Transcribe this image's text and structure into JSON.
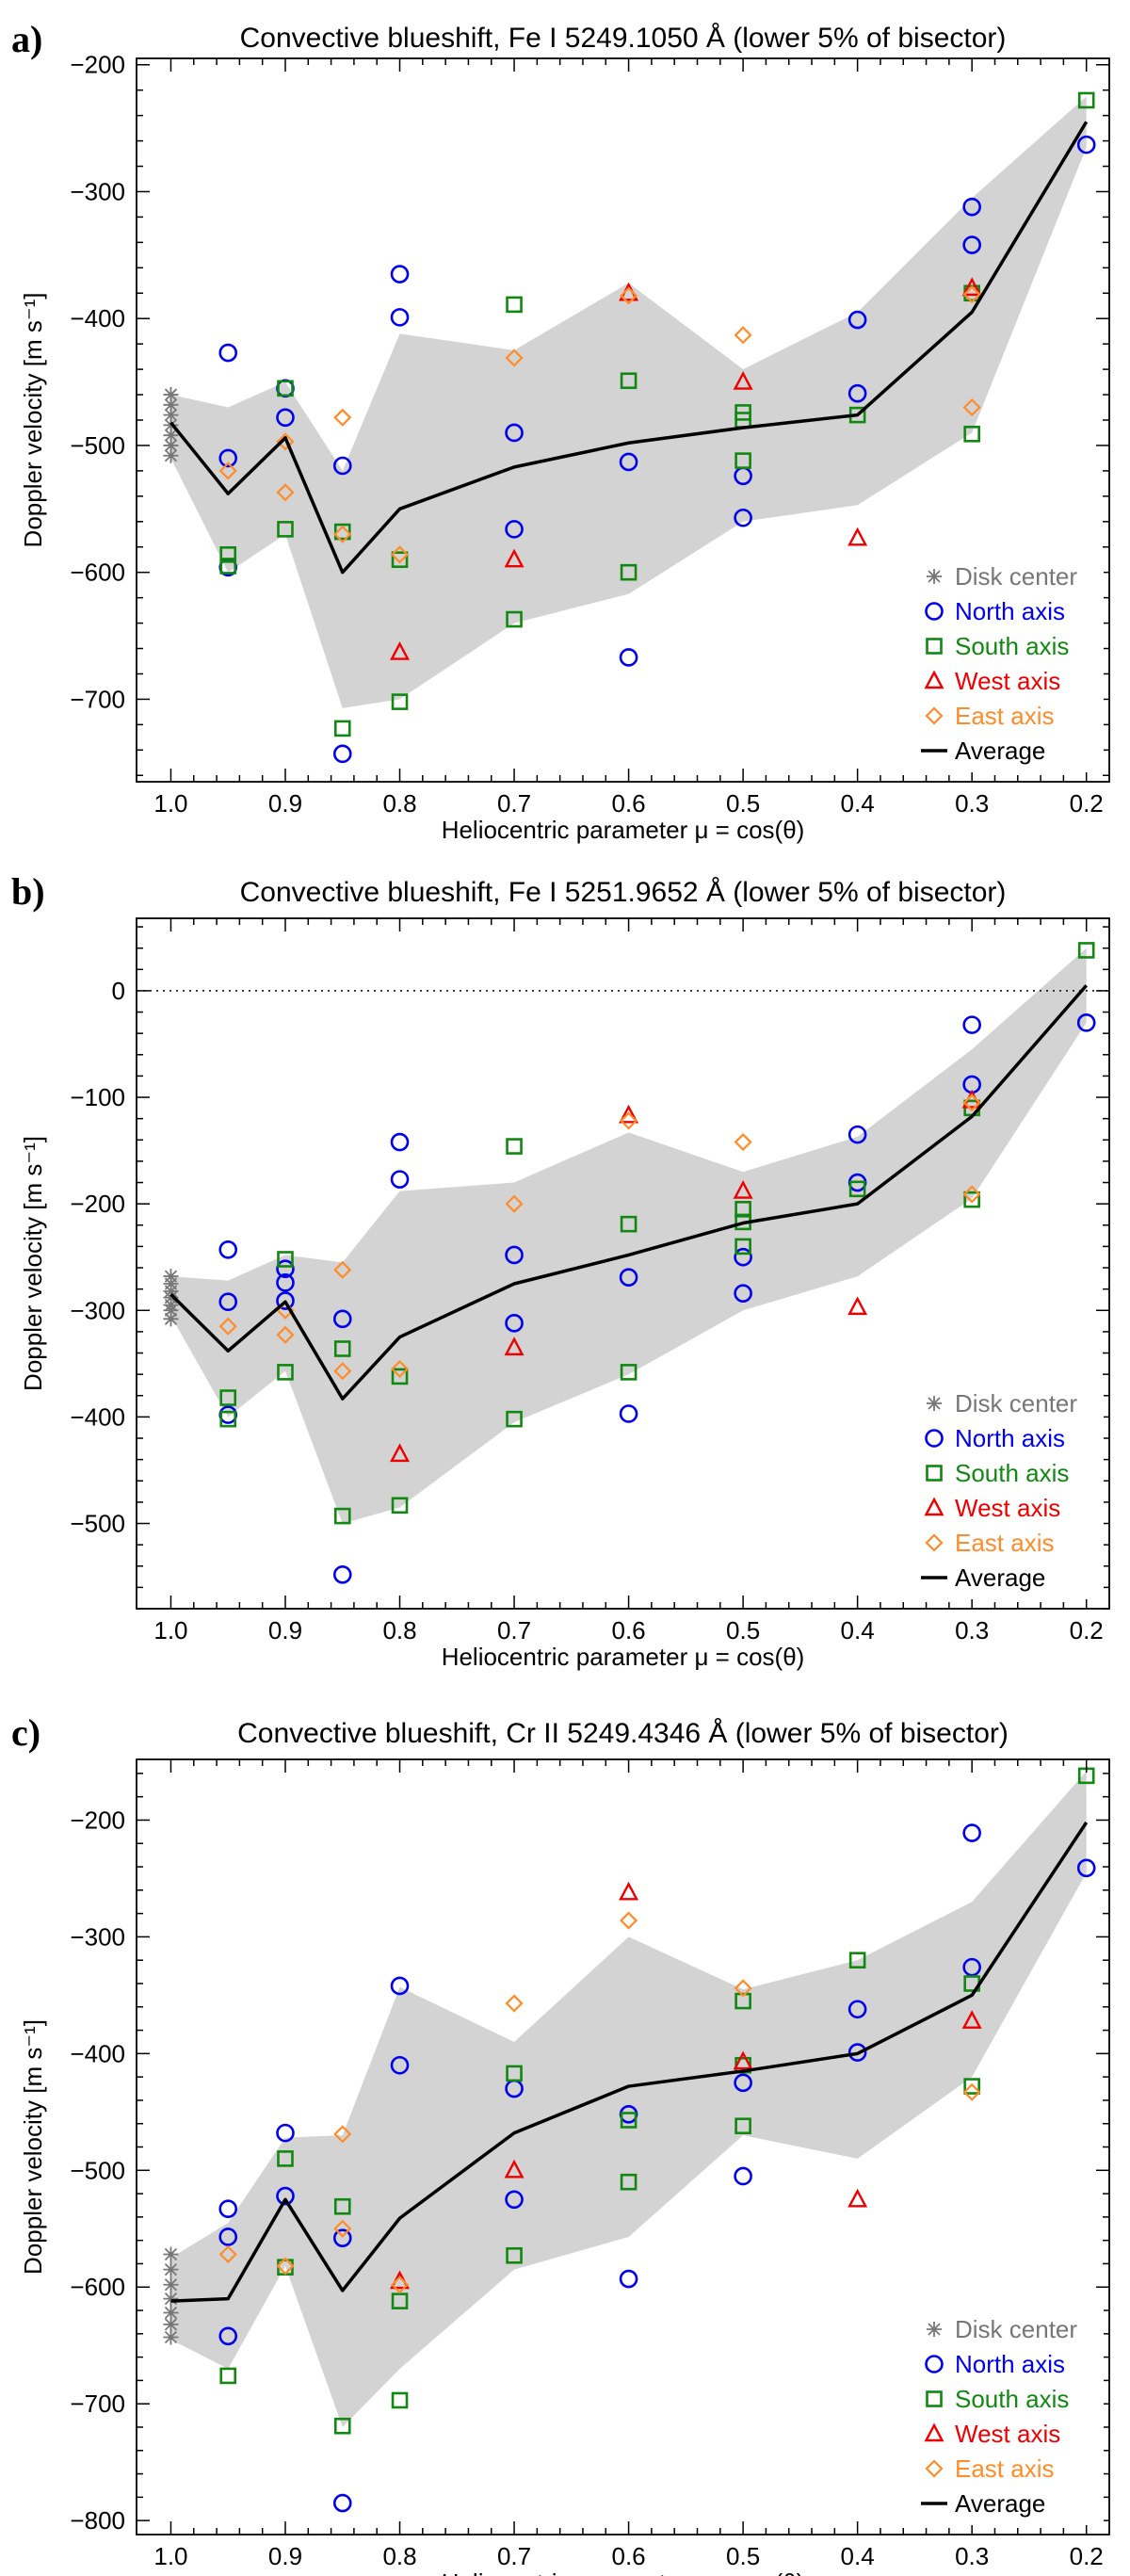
{
  "chart_data": [
    {
      "type": "scatter",
      "panel_label": "a)",
      "title": "Convective blueshift, Fe I 5249.1050 Å (lower 5% of bisector)",
      "xlabel": "Heliocentric parameter μ = cos(θ)",
      "ylabel": "Doppler velocity [m s⁻¹]",
      "xlim": [
        1.03,
        0.18
      ],
      "ylim": [
        -765,
        -195
      ],
      "xticks": [
        "1.0",
        "0.9",
        "0.8",
        "0.7",
        "0.6",
        "0.5",
        "0.4",
        "0.3",
        "0.2"
      ],
      "yticks": [
        "-200",
        "-300",
        "-400",
        "-500",
        "-600",
        "-700"
      ],
      "ytick_values": [
        -200,
        -300,
        -400,
        -500,
        -600,
        -700
      ],
      "zero_line": false,
      "legend_position": "bottom-right",
      "legend": [
        "Disk center",
        "North axis",
        "South axis",
        "West axis",
        "East axis",
        "Average"
      ],
      "band_x": [
        1.0,
        0.95,
        0.9,
        0.85,
        0.8,
        0.7,
        0.6,
        0.5,
        0.4,
        0.3,
        0.2
      ],
      "band_upper": [
        -460,
        -470,
        -450,
        -520,
        -412,
        -425,
        -372,
        -440,
        -395,
        -305,
        -225
      ],
      "band_lower": [
        -510,
        -600,
        -570,
        -707,
        -700,
        -640,
        -617,
        -560,
        -547,
        -490,
        -265
      ],
      "series": [
        {
          "name": "Disk center",
          "marker": "star",
          "color": "#777777",
          "x": [
            1.0,
            1.0,
            1.0,
            1.0,
            1.0,
            1.0,
            1.0
          ],
          "y": [
            -460,
            -468,
            -476,
            -484,
            -492,
            -500,
            -508
          ]
        },
        {
          "name": "North axis",
          "marker": "circle",
          "color": "#0000ee",
          "x": [
            0.95,
            0.95,
            0.95,
            0.9,
            0.9,
            0.85,
            0.85,
            0.8,
            0.8,
            0.7,
            0.7,
            0.6,
            0.6,
            0.5,
            0.5,
            0.4,
            0.4,
            0.3,
            0.3,
            0.2
          ],
          "y": [
            -427,
            -510,
            -596,
            -455,
            -478,
            -516,
            -743,
            -365,
            -399,
            -490,
            -566,
            -513,
            -667,
            -524,
            -557,
            -401,
            -459,
            -312,
            -342,
            -263
          ]
        },
        {
          "name": "South axis",
          "marker": "square",
          "color": "#118811",
          "x": [
            0.95,
            0.95,
            0.9,
            0.9,
            0.85,
            0.85,
            0.8,
            0.8,
            0.7,
            0.7,
            0.6,
            0.6,
            0.5,
            0.5,
            0.5,
            0.4,
            0.3,
            0.3,
            0.2
          ],
          "y": [
            -586,
            -595,
            -455,
            -566,
            -568,
            -723,
            -590,
            -702,
            -389,
            -637,
            -449,
            -600,
            -474,
            -480,
            -512,
            -476,
            -380,
            -491,
            -228
          ]
        },
        {
          "name": "West axis",
          "marker": "triangle",
          "color": "#ee0000",
          "x": [
            0.8,
            0.7,
            0.6,
            0.5,
            0.4,
            0.3
          ],
          "y": [
            -663,
            -590,
            -380,
            -450,
            -573,
            -376
          ]
        },
        {
          "name": "East axis",
          "marker": "diamond",
          "color": "#ff8c28",
          "x": [
            0.95,
            0.9,
            0.9,
            0.85,
            0.85,
            0.8,
            0.7,
            0.6,
            0.5,
            0.3,
            0.3
          ],
          "y": [
            -520,
            -497,
            -537,
            -478,
            -570,
            -586,
            -431,
            -382,
            -413,
            -381,
            -470
          ]
        },
        {
          "name": "Average",
          "marker": "line",
          "color": "#000000",
          "x": [
            1.0,
            0.95,
            0.9,
            0.85,
            0.8,
            0.7,
            0.6,
            0.5,
            0.4,
            0.3,
            0.2
          ],
          "y": [
            -482,
            -538,
            -494,
            -600,
            -550,
            -517,
            -498,
            -486,
            -476,
            -395,
            -245
          ]
        }
      ]
    },
    {
      "type": "scatter",
      "panel_label": "b)",
      "title": "Convective blueshift, Fe I 5251.9652 Å (lower 5% of bisector)",
      "xlabel": "Heliocentric parameter μ = cos(θ)",
      "ylabel": "Doppler velocity [m s⁻¹]",
      "xlim": [
        1.03,
        0.18
      ],
      "ylim": [
        -580,
        68
      ],
      "xticks": [
        "1.0",
        "0.9",
        "0.8",
        "0.7",
        "0.6",
        "0.5",
        "0.4",
        "0.3",
        "0.2"
      ],
      "yticks": [
        "0",
        "-100",
        "-200",
        "-300",
        "-400",
        "-500"
      ],
      "ytick_values": [
        0,
        -100,
        -200,
        -300,
        -400,
        -500
      ],
      "zero_line": true,
      "legend_position": "bottom-right",
      "legend": [
        "Disk center",
        "North axis",
        "South axis",
        "West axis",
        "East axis",
        "Average"
      ],
      "band_x": [
        1.0,
        0.95,
        0.9,
        0.85,
        0.8,
        0.7,
        0.6,
        0.5,
        0.4,
        0.3,
        0.2
      ],
      "band_upper": [
        -268,
        -272,
        -248,
        -255,
        -188,
        -180,
        -133,
        -170,
        -137,
        -55,
        40
      ],
      "band_lower": [
        -305,
        -400,
        -357,
        -500,
        -485,
        -405,
        -360,
        -300,
        -268,
        -195,
        -30
      ],
      "series": [
        {
          "name": "Disk center",
          "marker": "star",
          "color": "#777777",
          "x": [
            1.0,
            1.0,
            1.0,
            1.0,
            1.0,
            1.0,
            1.0
          ],
          "y": [
            -268,
            -275,
            -282,
            -288,
            -295,
            -300,
            -308
          ]
        },
        {
          "name": "North axis",
          "marker": "circle",
          "color": "#0000ee",
          "x": [
            0.95,
            0.95,
            0.95,
            0.9,
            0.9,
            0.9,
            0.85,
            0.85,
            0.8,
            0.8,
            0.7,
            0.7,
            0.6,
            0.6,
            0.5,
            0.5,
            0.4,
            0.4,
            0.3,
            0.3,
            0.2
          ],
          "y": [
            -243,
            -292,
            -398,
            -261,
            -274,
            -291,
            -308,
            -548,
            -142,
            -177,
            -248,
            -312,
            -269,
            -397,
            -250,
            -284,
            -135,
            -180,
            -32,
            -88,
            -30
          ]
        },
        {
          "name": "South axis",
          "marker": "square",
          "color": "#118811",
          "x": [
            0.95,
            0.95,
            0.9,
            0.9,
            0.85,
            0.85,
            0.8,
            0.8,
            0.7,
            0.7,
            0.6,
            0.6,
            0.5,
            0.5,
            0.5,
            0.4,
            0.3,
            0.3,
            0.2
          ],
          "y": [
            -382,
            -402,
            -252,
            -358,
            -336,
            -493,
            -362,
            -483,
            -146,
            -402,
            -219,
            -358,
            -205,
            -217,
            -240,
            -186,
            -110,
            -196,
            38
          ]
        },
        {
          "name": "West axis",
          "marker": "triangle",
          "color": "#ee0000",
          "x": [
            0.8,
            0.7,
            0.6,
            0.5,
            0.4,
            0.3
          ],
          "y": [
            -435,
            -335,
            -117,
            -188,
            -297,
            -103
          ]
        },
        {
          "name": "East axis",
          "marker": "diamond",
          "color": "#ff8c28",
          "x": [
            0.95,
            0.9,
            0.9,
            0.85,
            0.85,
            0.8,
            0.7,
            0.6,
            0.5,
            0.3,
            0.3
          ],
          "y": [
            -315,
            -300,
            -323,
            -262,
            -357,
            -355,
            -200,
            -122,
            -142,
            -105,
            -191
          ]
        },
        {
          "name": "Average",
          "marker": "line",
          "color": "#000000",
          "x": [
            1.0,
            0.95,
            0.9,
            0.85,
            0.8,
            0.7,
            0.6,
            0.5,
            0.4,
            0.3,
            0.2
          ],
          "y": [
            -285,
            -338,
            -292,
            -383,
            -325,
            -275,
            -248,
            -218,
            -200,
            -118,
            5
          ]
        }
      ]
    },
    {
      "type": "scatter",
      "panel_label": "c)",
      "title": "Convective blueshift, Cr II 5249.4346 Å (lower 5% of bisector)",
      "xlabel": "Heliocentric parameter μ = cos(θ)",
      "ylabel": "Doppler velocity [m s⁻¹]",
      "xlim": [
        1.03,
        0.18
      ],
      "ylim": [
        -812,
        -148
      ],
      "xticks": [
        "1.0",
        "0.9",
        "0.8",
        "0.7",
        "0.6",
        "0.5",
        "0.4",
        "0.3",
        "0.2"
      ],
      "yticks": [
        "-200",
        "-300",
        "-400",
        "-500",
        "-600",
        "-700",
        "-800"
      ],
      "ytick_values": [
        -200,
        -300,
        -400,
        -500,
        -600,
        -700,
        -800
      ],
      "zero_line": false,
      "legend_position": "bottom-right",
      "legend": [
        "Disk center",
        "North axis",
        "South axis",
        "West axis",
        "East axis",
        "Average"
      ],
      "band_x": [
        1.0,
        0.95,
        0.9,
        0.85,
        0.8,
        0.7,
        0.6,
        0.5,
        0.4,
        0.3,
        0.2
      ],
      "band_upper": [
        -575,
        -545,
        -472,
        -470,
        -343,
        -390,
        -300,
        -345,
        -320,
        -270,
        -158
      ],
      "band_lower": [
        -645,
        -670,
        -582,
        -720,
        -670,
        -585,
        -557,
        -470,
        -490,
        -420,
        -245
      ],
      "series": [
        {
          "name": "Disk center",
          "marker": "star",
          "color": "#777777",
          "x": [
            1.0,
            1.0,
            1.0,
            1.0,
            1.0,
            1.0,
            1.0
          ],
          "y": [
            -572,
            -585,
            -598,
            -610,
            -622,
            -632,
            -643
          ]
        },
        {
          "name": "North axis",
          "marker": "circle",
          "color": "#0000ee",
          "x": [
            0.95,
            0.95,
            0.95,
            0.9,
            0.9,
            0.85,
            0.85,
            0.8,
            0.8,
            0.7,
            0.7,
            0.6,
            0.6,
            0.5,
            0.5,
            0.4,
            0.4,
            0.3,
            0.3,
            0.2
          ],
          "y": [
            -533,
            -557,
            -642,
            -468,
            -522,
            -558,
            -785,
            -342,
            -410,
            -430,
            -525,
            -452,
            -593,
            -425,
            -505,
            -362,
            -399,
            -211,
            -326,
            -241
          ]
        },
        {
          "name": "South axis",
          "marker": "square",
          "color": "#118811",
          "x": [
            0.95,
            0.9,
            0.9,
            0.85,
            0.85,
            0.8,
            0.8,
            0.7,
            0.7,
            0.6,
            0.6,
            0.5,
            0.5,
            0.5,
            0.4,
            0.3,
            0.3,
            0.2
          ],
          "y": [
            -676,
            -490,
            -583,
            -531,
            -719,
            -612,
            -697,
            -417,
            -573,
            -457,
            -510,
            -355,
            -410,
            -462,
            -320,
            -340,
            -428,
            -162
          ]
        },
        {
          "name": "West axis",
          "marker": "triangle",
          "color": "#ee0000",
          "x": [
            0.8,
            0.7,
            0.6,
            0.5,
            0.4,
            0.3
          ],
          "y": [
            -595,
            -500,
            -262,
            -407,
            -525,
            -372
          ]
        },
        {
          "name": "East axis",
          "marker": "diamond",
          "color": "#ff8c28",
          "x": [
            0.95,
            0.9,
            0.85,
            0.85,
            0.8,
            0.7,
            0.6,
            0.5,
            0.3
          ],
          "y": [
            -572,
            -582,
            -469,
            -550,
            -598,
            -357,
            -286,
            -344,
            -433
          ]
        },
        {
          "name": "Average",
          "marker": "line",
          "color": "#000000",
          "x": [
            1.0,
            0.95,
            0.9,
            0.85,
            0.8,
            0.7,
            0.6,
            0.5,
            0.4,
            0.3,
            0.2
          ],
          "y": [
            -612,
            -610,
            -525,
            -603,
            -541,
            -468,
            -428,
            -415,
            -400,
            -350,
            -202
          ]
        }
      ]
    }
  ]
}
